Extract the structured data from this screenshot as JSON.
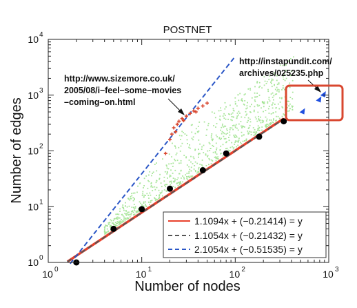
{
  "chart_data": {
    "type": "scatter",
    "title": "POSTNET",
    "xlabel": "Number of nodes",
    "ylabel": "Number of edges",
    "xscale": "log",
    "yscale": "log",
    "xlim": [
      1,
      1000
    ],
    "ylim": [
      1,
      10000
    ],
    "x_ticks": [
      {
        "base": "10",
        "exp": "0",
        "value": 1
      },
      {
        "base": "10",
        "exp": "1",
        "value": 10
      },
      {
        "base": "10",
        "exp": "2",
        "value": 100
      },
      {
        "base": "10",
        "exp": "3",
        "value": 1000
      }
    ],
    "y_ticks": [
      {
        "base": "10",
        "exp": "0",
        "value": 1
      },
      {
        "base": "10",
        "exp": "1",
        "value": 10
      },
      {
        "base": "10",
        "exp": "2",
        "value": 100
      },
      {
        "base": "10",
        "exp": "3",
        "value": 1000
      },
      {
        "base": "10",
        "exp": "4",
        "value": 10000
      }
    ],
    "grid": false,
    "legend_position": "bottom-right",
    "colors": {
      "fit1": "#e8412c",
      "fit2": "#555555",
      "fit3": "#2a56c6",
      "green": "#a8e59a",
      "red_pts": "#d9472f",
      "blue_pts": "#1f4fe0",
      "callout": "#d9472f",
      "black_pts": "#000000"
    },
    "series": [
      {
        "name": "1.1094x + (−0.21414) = y",
        "style": "solid",
        "color": "#e8412c",
        "slope": 1.1094,
        "intercept": -0.21414
      },
      {
        "name": "1.1054x + (−0.21432) = y",
        "style": "dashed",
        "color": "#555555",
        "slope": 1.1054,
        "intercept": -0.21432
      },
      {
        "name": "2.1054x + (−0.51535) = y",
        "style": "dashed",
        "color": "#2a56c6",
        "slope": 2.1054,
        "intercept": -0.51535
      }
    ],
    "black_points": [
      {
        "x": 2,
        "y": 1
      },
      {
        "x": 5,
        "y": 4
      },
      {
        "x": 10,
        "y": 9
      },
      {
        "x": 20,
        "y": 21
      },
      {
        "x": 45,
        "y": 45
      },
      {
        "x": 80,
        "y": 90
      },
      {
        "x": 180,
        "y": 180
      },
      {
        "x": 330,
        "y": 340
      }
    ],
    "red_points": [
      {
        "x": 18,
        "y": 90
      },
      {
        "x": 20,
        "y": 160
      },
      {
        "x": 21,
        "y": 200
      },
      {
        "x": 22,
        "y": 260
      },
      {
        "x": 24,
        "y": 300
      },
      {
        "x": 25,
        "y": 340
      },
      {
        "x": 27,
        "y": 380
      },
      {
        "x": 30,
        "y": 420
      },
      {
        "x": 33,
        "y": 470
      },
      {
        "x": 36,
        "y": 520
      },
      {
        "x": 40,
        "y": 580
      },
      {
        "x": 45,
        "y": 640
      },
      {
        "x": 50,
        "y": 720
      },
      {
        "x": 23,
        "y": 220
      },
      {
        "x": 28,
        "y": 350
      },
      {
        "x": 38,
        "y": 500
      }
    ],
    "blue_points": [
      {
        "x": 520,
        "y": 520
      },
      {
        "x": 780,
        "y": 850
      },
      {
        "x": 870,
        "y": 1050
      }
    ],
    "annotations": [
      {
        "id": "sizemore",
        "lines": [
          "http://www.sizemore.co.uk/",
          "2005/08/i–feel–some–movies",
          "–coming–on.html"
        ]
      },
      {
        "id": "instapundit",
        "lines": [
          "http://instapundit.com/",
          "archives/025235.php"
        ]
      }
    ]
  }
}
